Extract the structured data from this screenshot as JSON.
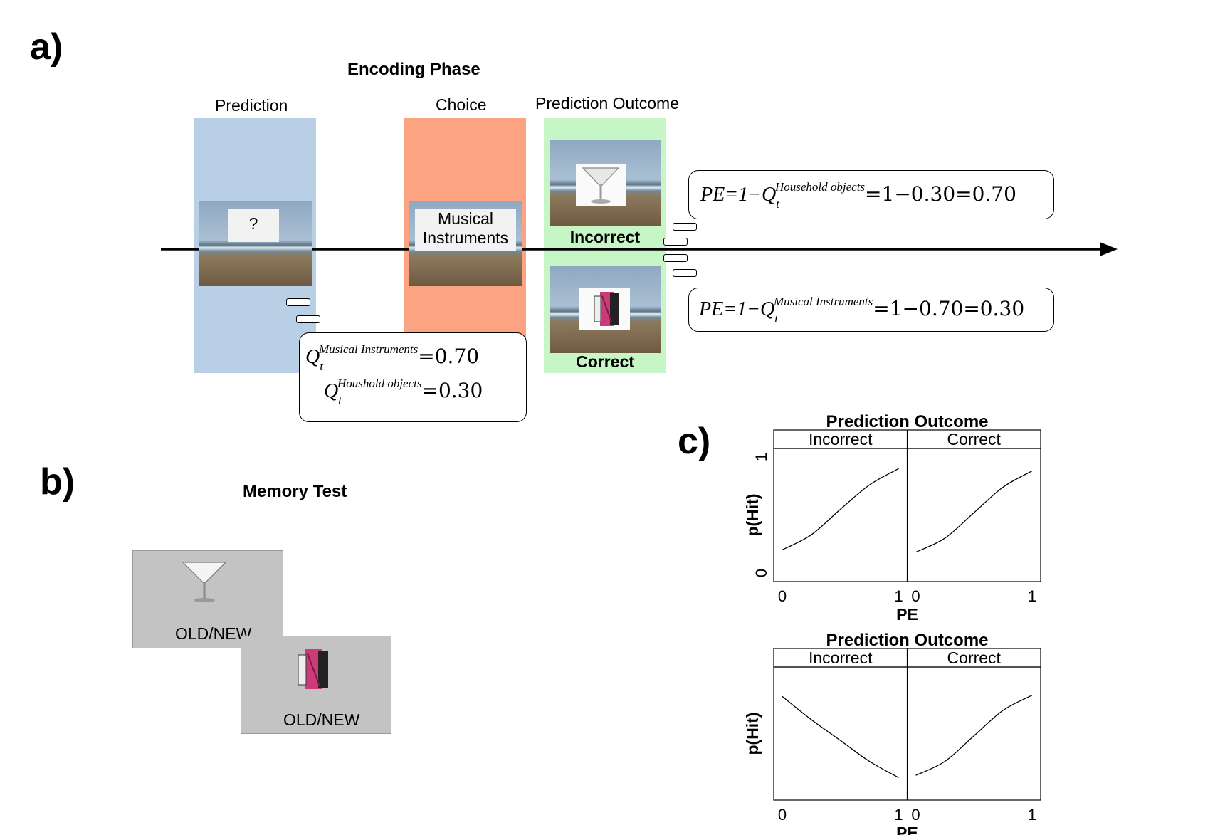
{
  "panel_a": {
    "letter": "a)",
    "title": "Encoding Phase",
    "phases": {
      "prediction": "Prediction",
      "choice": "Choice",
      "outcome": "Prediction Outcome"
    },
    "prediction_card": "?",
    "choice_card": [
      "Musical",
      "Instruments"
    ],
    "outcome_incorrect": "Incorrect",
    "outcome_correct": "Correct",
    "q_box": {
      "line1": {
        "symbol": "Q",
        "sup": "Musical Instruments",
        "sub": "t",
        "rhs": "=0.70"
      },
      "line2": {
        "symbol": "Q",
        "sup": "Houshold objects",
        "sub": "t",
        "rhs": "=0.30"
      }
    },
    "pe_incorrect": {
      "lhs": "PE=1−",
      "symbol": "Q",
      "sup": "Household objects",
      "sub": "t",
      "rhs": "=1−0.30=0.70"
    },
    "pe_correct": {
      "lhs": "PE=1−",
      "symbol": "Q",
      "sup": "Musical Instruments",
      "sub": "t",
      "rhs": "=1−0.70=0.30"
    },
    "colors": {
      "prediction": "#b8cfe6",
      "choice": "#fca482",
      "outcome": "#c6f5c6"
    }
  },
  "panel_b": {
    "letter": "b)",
    "title": "Memory Test",
    "card1_text": "OLD/NEW",
    "card2_text": "OLD/NEW",
    "card_color": "#c3c3c3"
  },
  "panel_c": {
    "letter": "c)",
    "chart_data": [
      {
        "type": "line",
        "title": "Prediction Outcome",
        "facets": [
          "Incorrect",
          "Correct"
        ],
        "xlabel": "PE",
        "ylabel": "p(Hit)",
        "xlim": [
          0,
          1
        ],
        "ylim": [
          0,
          1
        ],
        "xticks": [
          0,
          1
        ],
        "yticks": [
          0,
          1
        ],
        "series": [
          {
            "facet": "Incorrect",
            "x": [
              0,
              0.25,
              0.5,
              0.75,
              1
            ],
            "y": [
              0.2,
              0.33,
              0.55,
              0.76,
              0.9
            ]
          },
          {
            "facet": "Correct",
            "x": [
              0,
              0.25,
              0.5,
              0.75,
              1
            ],
            "y": [
              0.18,
              0.3,
              0.52,
              0.74,
              0.88
            ]
          }
        ]
      },
      {
        "type": "line",
        "title": "Prediction Outcome",
        "facets": [
          "Incorrect",
          "Correct"
        ],
        "xlabel": "PE",
        "ylabel": "p(Hit)",
        "xlim": [
          0,
          1
        ],
        "ylim": [
          0,
          1
        ],
        "xticks": [
          0,
          1
        ],
        "yticks": [],
        "series": [
          {
            "facet": "Incorrect",
            "x": [
              0,
              0.25,
              0.5,
              0.75,
              1
            ],
            "y": [
              0.82,
              0.62,
              0.44,
              0.26,
              0.12
            ]
          },
          {
            "facet": "Correct",
            "x": [
              0,
              0.25,
              0.5,
              0.75,
              1
            ],
            "y": [
              0.14,
              0.26,
              0.48,
              0.7,
              0.83
            ]
          }
        ]
      }
    ]
  }
}
